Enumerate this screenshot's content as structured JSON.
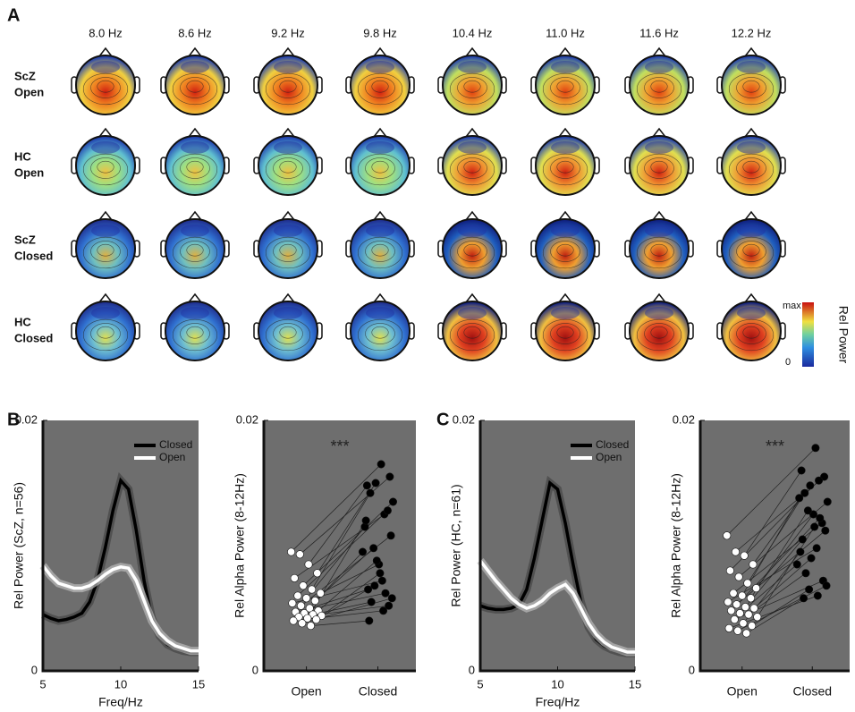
{
  "panel_labels": [
    "A",
    "B",
    "C"
  ],
  "topomap": {
    "frequencies": [
      "8.0 Hz",
      "8.6 Hz",
      "9.2 Hz",
      "9.8 Hz",
      "10.4 Hz",
      "11.0 Hz",
      "11.6 Hz",
      "12.2 Hz"
    ],
    "rows": [
      [
        "ScZ",
        "Open"
      ],
      [
        "HC",
        "Open"
      ],
      [
        "ScZ",
        "Closed"
      ],
      [
        "HC",
        "Closed"
      ]
    ],
    "colorbar": {
      "title": "Rel Power",
      "max_label": "max",
      "min_label": "0"
    }
  },
  "chart_data": [
    {
      "type": "line",
      "xlabel": "Freq/Hz",
      "ylabel": "Rel Power (ScZ, n=56)",
      "x": [
        5,
        5.5,
        6,
        6.5,
        7,
        7.5,
        8,
        8.5,
        9,
        9.5,
        10,
        10.5,
        11,
        11.5,
        12,
        12.5,
        13,
        13.5,
        14,
        14.5,
        15
      ],
      "series": [
        {
          "name": "Closed",
          "color": "#000000",
          "values": [
            0.0045,
            0.0042,
            0.004,
            0.0041,
            0.0043,
            0.0046,
            0.0055,
            0.0072,
            0.0098,
            0.0128,
            0.0152,
            0.0145,
            0.0112,
            0.0072,
            0.0042,
            0.0028,
            0.0021,
            0.0018,
            0.0016,
            0.0015,
            0.0015
          ]
        },
        {
          "name": "Open",
          "color": "#ffffff",
          "values": [
            0.0084,
            0.0076,
            0.007,
            0.0068,
            0.0066,
            0.0066,
            0.0068,
            0.0072,
            0.0077,
            0.0081,
            0.0083,
            0.0082,
            0.0072,
            0.0056,
            0.004,
            0.003,
            0.0024,
            0.002,
            0.0018,
            0.0016,
            0.0016
          ]
        }
      ],
      "xlim": [
        5,
        15
      ],
      "xticks": [
        5,
        10,
        15
      ],
      "ylim": [
        0,
        0.02
      ],
      "yticks": [
        0,
        0.02
      ],
      "legend": "upper right"
    },
    {
      "type": "paired_scatter",
      "ylabel": "Rel Alpha Power (8-12Hz)",
      "annotation": "***",
      "categories": [
        "Open",
        "Closed"
      ],
      "series": [
        {
          "name": "Open",
          "color": "#ffffff",
          "values": [
            0.0095,
            0.0093,
            0.0085,
            0.0078,
            0.0074,
            0.0068,
            0.0065,
            0.0062,
            0.006,
            0.0058,
            0.0056,
            0.0054,
            0.0052,
            0.005,
            0.0048,
            0.0047,
            0.0046,
            0.0045,
            0.0044,
            0.0043,
            0.0042,
            0.0041,
            0.004,
            0.0038,
            0.0036
          ]
        },
        {
          "name": "Closed",
          "color": "#000000",
          "values": [
            0.0165,
            0.0155,
            0.0148,
            0.015,
            0.0125,
            0.0135,
            0.0142,
            0.0085,
            0.0128,
            0.0115,
            0.0098,
            0.0072,
            0.0108,
            0.0065,
            0.0088,
            0.0062,
            0.0095,
            0.0055,
            0.0078,
            0.0052,
            0.012,
            0.0068,
            0.0048,
            0.0058,
            0.004
          ]
        }
      ],
      "ylim": [
        0,
        0.02
      ],
      "yticks": [
        0,
        0.02
      ]
    },
    {
      "type": "line",
      "xlabel": "Freq/Hz",
      "ylabel": "Rel Power (HC, n=61)",
      "x": [
        5,
        5.5,
        6,
        6.5,
        7,
        7.5,
        8,
        8.5,
        9,
        9.5,
        10,
        10.5,
        11,
        11.5,
        12,
        12.5,
        13,
        13.5,
        14,
        14.5,
        15
      ],
      "series": [
        {
          "name": "Closed",
          "color": "#000000",
          "values": [
            0.0052,
            0.005,
            0.0049,
            0.0049,
            0.005,
            0.0053,
            0.0065,
            0.009,
            0.012,
            0.015,
            0.0145,
            0.0118,
            0.0085,
            0.0055,
            0.0035,
            0.0025,
            0.002,
            0.0017,
            0.0015,
            0.0014,
            0.0014
          ]
        },
        {
          "name": "Open",
          "color": "#ffffff",
          "values": [
            0.0088,
            0.008,
            0.0072,
            0.0065,
            0.0058,
            0.0053,
            0.005,
            0.0052,
            0.0056,
            0.0062,
            0.0066,
            0.0069,
            0.0062,
            0.005,
            0.0038,
            0.0029,
            0.0023,
            0.0019,
            0.0017,
            0.0015,
            0.0015
          ]
        }
      ],
      "xlim": [
        5,
        15
      ],
      "xticks": [
        5,
        10,
        15
      ],
      "ylim": [
        0,
        0.02
      ],
      "yticks": [
        0,
        0.02
      ],
      "legend": "upper right"
    },
    {
      "type": "paired_scatter",
      "ylabel": "Rel Alpha Power (8-12Hz)",
      "annotation": "***",
      "categories": [
        "Open",
        "Closed"
      ],
      "series": [
        {
          "name": "Open",
          "color": "#ffffff",
          "values": [
            0.0108,
            0.0095,
            0.0092,
            0.0085,
            0.008,
            0.0075,
            0.007,
            0.0066,
            0.0062,
            0.006,
            0.0058,
            0.0055,
            0.0053,
            0.0051,
            0.005,
            0.0048,
            0.0046,
            0.0045,
            0.0043,
            0.0041,
            0.0038,
            0.0036,
            0.0034,
            0.0032,
            0.003
          ]
        },
        {
          "name": "Closed",
          "color": "#000000",
          "values": [
            0.0178,
            0.0155,
            0.016,
            0.0148,
            0.0152,
            0.0135,
            0.0142,
            0.0125,
            0.0118,
            0.0138,
            0.0128,
            0.0098,
            0.0112,
            0.0105,
            0.009,
            0.0122,
            0.0085,
            0.0078,
            0.0115,
            0.0072,
            0.0095,
            0.0065,
            0.006,
            0.0068,
            0.0058
          ]
        }
      ],
      "ylim": [
        0,
        0.02
      ],
      "yticks": [
        0,
        0.02
      ]
    }
  ]
}
